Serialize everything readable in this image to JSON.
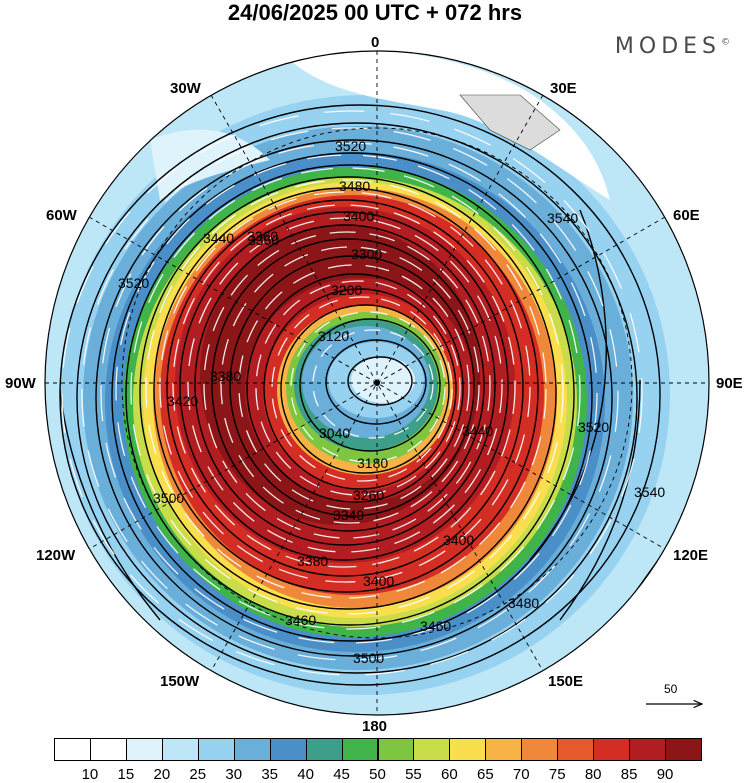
{
  "title": "24/06/2025  00 UTC  + 072 hrs",
  "brand": {
    "name": "MODES",
    "mark": "©"
  },
  "longitude_labels": {
    "top": "0",
    "bottom": "180",
    "left": "90W",
    "right": "90E",
    "upper_left": "30W",
    "upper_right": "30E",
    "mid_left_upper": "60W",
    "mid_right_upper": "60E",
    "mid_left_lower": "120W",
    "mid_right_lower": "120E",
    "lower_left": "150W",
    "lower_right": "150E"
  },
  "contour_labels": [
    "3520",
    "3480",
    "3440",
    "3400",
    "3360",
    "3300",
    "3200",
    "3120",
    "3040",
    "3180",
    "3260",
    "3340",
    "3380",
    "3460",
    "3500",
    "3540",
    "3440",
    "3400",
    "3420",
    "3380",
    "3360",
    "3520",
    "3500",
    "3540",
    "3520",
    "3460",
    "3400",
    "3480"
  ],
  "reference_vector": {
    "label": "50"
  },
  "colorbar": {
    "ticks": [
      "10",
      "15",
      "20",
      "25",
      "30",
      "35",
      "40",
      "45",
      "50",
      "55",
      "60",
      "65",
      "70",
      "75",
      "80",
      "85",
      "90"
    ],
    "colors": [
      "#ffffff",
      "#dff3fd",
      "#bde6f7",
      "#97d2f1",
      "#6aaeda",
      "#4a8fc8",
      "#3d9f8a",
      "#40b448",
      "#7ec640",
      "#c9dc4a",
      "#f9de4e",
      "#f8b346",
      "#f0883b",
      "#e5592d",
      "#d42d24",
      "#b11d20",
      "#8b1517"
    ]
  }
}
